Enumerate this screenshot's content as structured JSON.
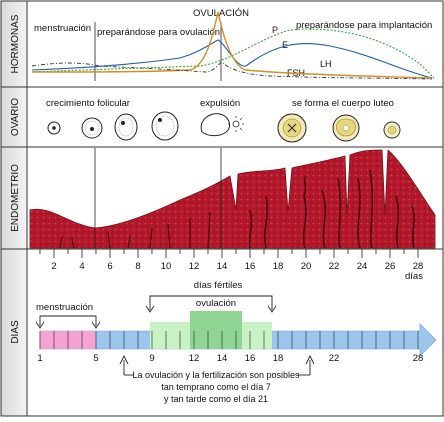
{
  "sections": {
    "hormonas": "HORMONAS",
    "ovario": "OVARIO",
    "endometrio": "ENDOMETRIO",
    "dias": "DIAS"
  },
  "hormones": {
    "menstruacion": "menstruación",
    "prep_ovulacion": "preparándose para ovulación",
    "ovulacion": "OVULACIÓN",
    "prep_implantacion": "preparándose para implantación",
    "p": "P",
    "e": "E",
    "lh": "LH",
    "fsh": "FSH"
  },
  "ovary": {
    "crecimiento": "crecimiento folicular",
    "expulsion": "expulsión",
    "cuerpo_luteo": "se forma el cuerpo luteo"
  },
  "endometrium_axis": {
    "ticks": [
      "2",
      "4",
      "6",
      "8",
      "10",
      "12",
      "14",
      "16",
      "18",
      "20",
      "22",
      "24",
      "26",
      "28"
    ],
    "unit": "días"
  },
  "days": {
    "dias_fertiles": "días fértiles",
    "menstruacion": "menstruación",
    "ovulacion": "ovulación",
    "labels": [
      "1",
      "5",
      "9",
      "12",
      "14",
      "16",
      "18",
      "22",
      "28"
    ],
    "note_line1": "La ovulación y la fertilización son posibles",
    "note_line2": "tan temprano como el día 7",
    "note_line3": "y tan tarde como el día 21"
  },
  "colors": {
    "tissue": "#b3182a",
    "menstruation_band": "#f4a3d3",
    "fertile_band": "#c7f2c3",
    "ovulation_band": "#8fd694",
    "base_band": "#a9cdf0",
    "arrow": "#9cc6ee",
    "estrogen": "#1f5fb5",
    "progesterone": "#37a832",
    "lh": "#333333",
    "fsh": "#d09020"
  }
}
